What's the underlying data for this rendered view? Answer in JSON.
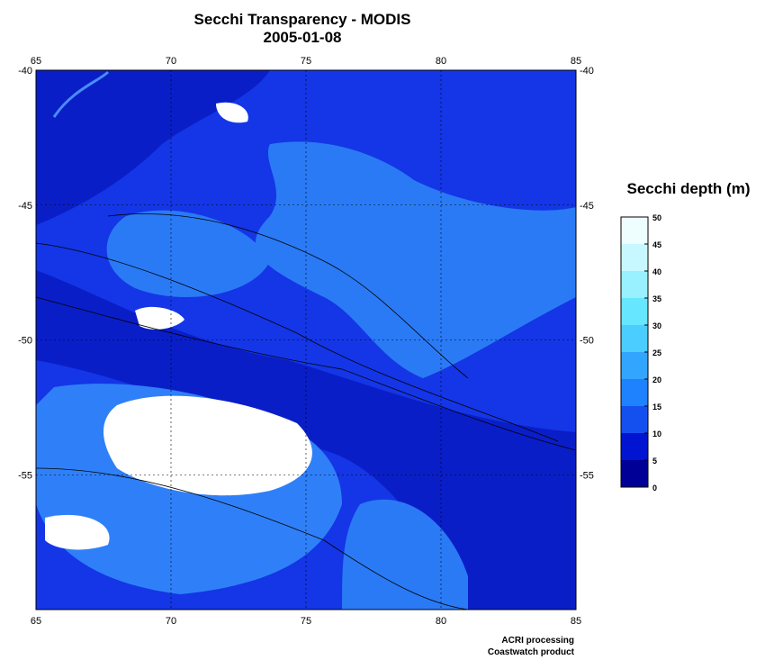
{
  "header": {
    "title": "Secchi Transparency - MODIS",
    "date": "2005-01-08"
  },
  "map": {
    "xlim": [
      65,
      85
    ],
    "ylim": [
      -60,
      -40
    ],
    "xticks": [
      65,
      70,
      75,
      80,
      85
    ],
    "yticks": [
      -40,
      -45,
      -50,
      -55
    ]
  },
  "colorbar": {
    "title": "Secchi depth (m)",
    "ticks": [
      0,
      5,
      10,
      15,
      20,
      25,
      30,
      35,
      40,
      45,
      50
    ],
    "colors": [
      "#000096",
      "#0014d2",
      "#1450f0",
      "#1e82ff",
      "#32a5ff",
      "#4ccdff",
      "#66e6ff",
      "#99f0ff",
      "#c8f8ff",
      "#eefeff"
    ]
  },
  "credits": [
    "ACRI processing",
    "Coastwatch product"
  ]
}
